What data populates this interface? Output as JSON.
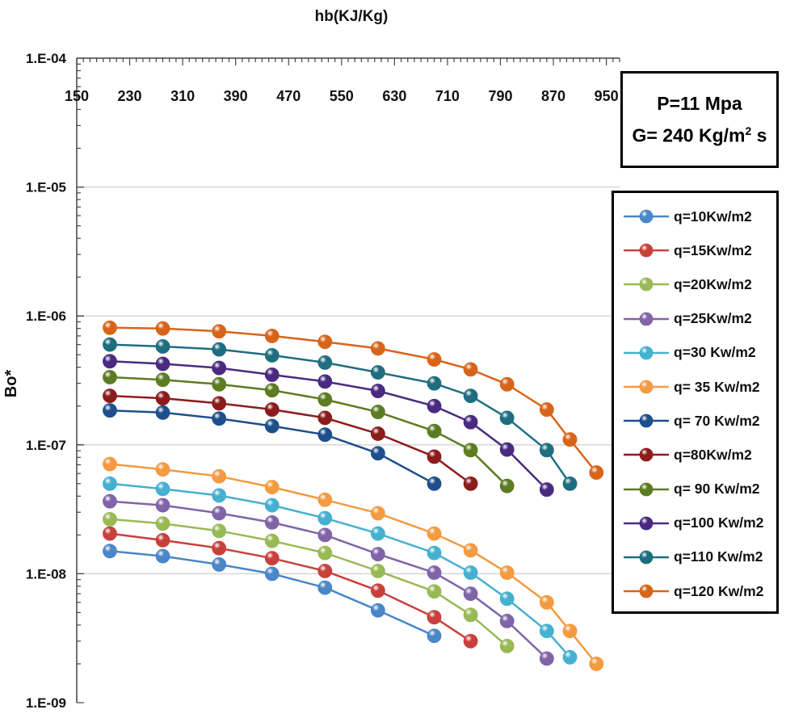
{
  "chart_data": {
    "type": "line",
    "title": "",
    "xlabel": "hb(KJ/Kg)",
    "ylabel": "Bo*",
    "x_axis_position": "top",
    "y_scale": "log",
    "xlim": [
      150,
      970
    ],
    "ylim": [
      1e-09,
      0.0001
    ],
    "x_ticks": [
      "150",
      "230",
      "310",
      "390",
      "470",
      "550",
      "630",
      "710",
      "790",
      "870",
      "950"
    ],
    "y_ticks": [
      "1.E-09",
      "1.E-08",
      "1.E-07",
      "1.E-06",
      "1.E-05",
      "1.E-04"
    ],
    "legend_position": "right",
    "series": [
      {
        "name": "q=10Kw/m2",
        "color": "#4a86c8",
        "x": [
          200,
          280,
          365,
          445,
          525,
          605,
          690
        ],
        "y": [
          1.5e-08,
          1.37e-08,
          1.18e-08,
          1e-08,
          7.8e-09,
          5.2e-09,
          3.3e-09
        ]
      },
      {
        "name": "q=15Kw/m2",
        "color": "#c8403c",
        "x": [
          200,
          280,
          365,
          445,
          525,
          605,
          690,
          745
        ],
        "y": [
          2.05e-08,
          1.82e-08,
          1.58e-08,
          1.32e-08,
          1.05e-08,
          7.4e-09,
          4.6e-09,
          3e-09
        ]
      },
      {
        "name": "q=20Kw/m2",
        "color": "#98b954",
        "x": [
          200,
          280,
          365,
          445,
          525,
          605,
          690,
          745,
          800
        ],
        "y": [
          2.65e-08,
          2.45e-08,
          2.15e-08,
          1.8e-08,
          1.45e-08,
          1.05e-08,
          7.3e-09,
          4.8e-09,
          2.75e-09
        ]
      },
      {
        "name": "q=25Kw/m2",
        "color": "#8064a8",
        "x": [
          200,
          280,
          365,
          445,
          525,
          605,
          690,
          745,
          800,
          860
        ],
        "y": [
          3.65e-08,
          3.4e-08,
          2.95e-08,
          2.5e-08,
          2e-08,
          1.42e-08,
          1.02e-08,
          7e-09,
          4.3e-09,
          2.2e-09
        ]
      },
      {
        "name": "q=30 Kw/m2",
        "color": "#46b0d0",
        "x": [
          200,
          280,
          365,
          445,
          525,
          605,
          690,
          745,
          800,
          860,
          895
        ],
        "y": [
          5e-08,
          4.55e-08,
          4.05e-08,
          3.4e-08,
          2.7e-08,
          2.05e-08,
          1.45e-08,
          1.02e-08,
          6.4e-09,
          3.6e-09,
          2.25e-09
        ]
      },
      {
        "name": "q= 35 Kw/m2",
        "color": "#f49a40",
        "x": [
          200,
          280,
          365,
          445,
          525,
          605,
          690,
          745,
          800,
          860,
          895,
          935
        ],
        "y": [
          7.1e-08,
          6.45e-08,
          5.7e-08,
          4.7e-08,
          3.75e-08,
          2.95e-08,
          2.05e-08,
          1.52e-08,
          1.02e-08,
          6e-09,
          3.6e-09,
          2e-09
        ]
      },
      {
        "name": "q= 70 Kw/m2",
        "color": "#1f4e8c",
        "x": [
          200,
          280,
          365,
          445,
          525,
          605,
          690
        ],
        "y": [
          1.85e-07,
          1.78e-07,
          1.6e-07,
          1.4e-07,
          1.2e-07,
          8.6e-08,
          5e-08
        ]
      },
      {
        "name": "q=80Kw/m2",
        "color": "#8c1c1c",
        "x": [
          200,
          280,
          365,
          445,
          525,
          605,
          690,
          745
        ],
        "y": [
          2.4e-07,
          2.3e-07,
          2.1e-07,
          1.88e-07,
          1.62e-07,
          1.22e-07,
          8.1e-08,
          5e-08
        ]
      },
      {
        "name": "q= 90 Kw/m2",
        "color": "#5c7c22",
        "x": [
          200,
          280,
          365,
          445,
          525,
          605,
          690,
          745,
          800
        ],
        "y": [
          3.35e-07,
          3.2e-07,
          2.95e-07,
          2.65e-07,
          2.25e-07,
          1.8e-07,
          1.28e-07,
          9.1e-08,
          4.8e-08
        ]
      },
      {
        "name": "q=100 Kw/m2",
        "color": "#4a2a80",
        "x": [
          200,
          280,
          365,
          445,
          525,
          605,
          690,
          745,
          800,
          860
        ],
        "y": [
          4.45e-07,
          4.25e-07,
          3.95e-07,
          3.5e-07,
          3.1e-07,
          2.62e-07,
          2e-07,
          1.5e-07,
          9.2e-08,
          4.5e-08
        ]
      },
      {
        "name": "q=110 Kw/m2",
        "color": "#1e6e80",
        "x": [
          200,
          280,
          365,
          445,
          525,
          605,
          690,
          745,
          800,
          860,
          895
        ],
        "y": [
          6e-07,
          5.8e-07,
          5.5e-07,
          4.95e-07,
          4.35e-07,
          3.65e-07,
          3e-07,
          2.4e-07,
          1.62e-07,
          9.1e-08,
          5e-08
        ]
      },
      {
        "name": "q=120 Kw/m2",
        "color": "#d8641a",
        "x": [
          200,
          280,
          365,
          445,
          525,
          605,
          690,
          745,
          800,
          860,
          895,
          935
        ],
        "y": [
          8.1e-07,
          8e-07,
          7.6e-07,
          7e-07,
          6.3e-07,
          5.6e-07,
          4.6e-07,
          3.85e-07,
          2.95e-07,
          1.88e-07,
          1.1e-07,
          6.1e-08
        ]
      }
    ]
  },
  "annotation": {
    "line1": "P=11  Mpa",
    "line2_prefix": "G= 240 Kg/m",
    "line2_sup": "2",
    "line2_suffix": " s"
  }
}
